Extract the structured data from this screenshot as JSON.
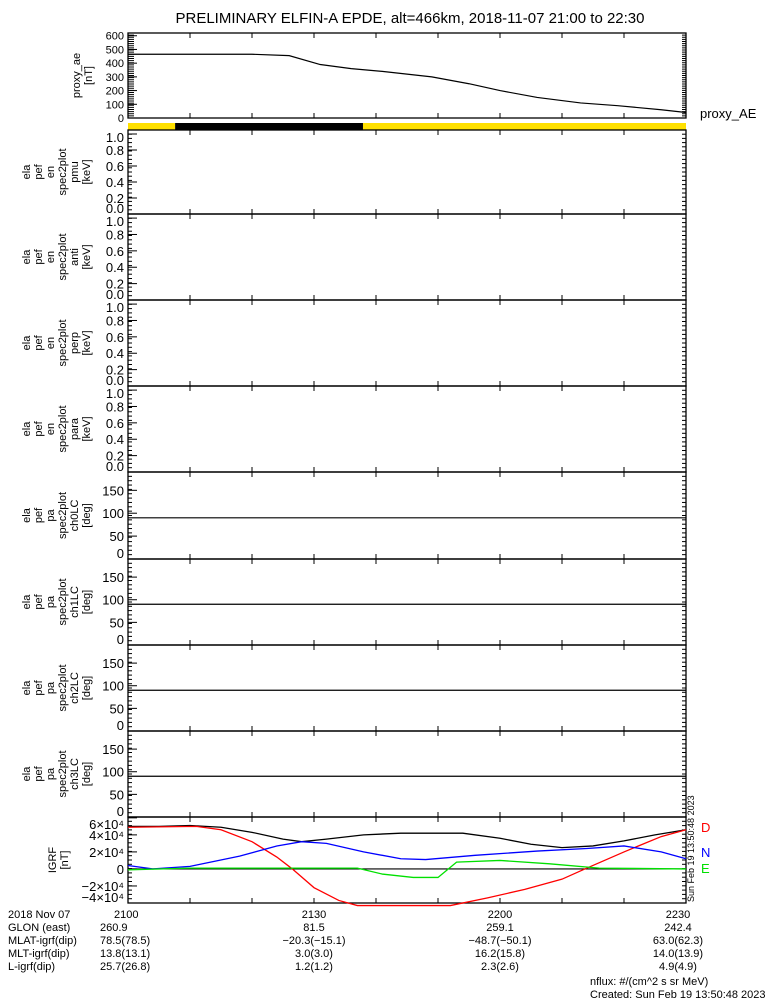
{
  "title": "PRELIMINARY ELFIN-A EPDE, alt=466km, 2018-11-07 21:00 to 22:30",
  "chart_data": [
    {
      "type": "line",
      "name": "proxy_ae",
      "ylabel": [
        "proxy_ae",
        "[nT]"
      ],
      "ylim": [
        0,
        620
      ],
      "yticks": [
        "0",
        "100",
        "200",
        "300",
        "400",
        "500",
        "600"
      ],
      "ytick_values": [
        0,
        100,
        200,
        300,
        400,
        500,
        600
      ],
      "legend": "proxy_AE",
      "x": [
        0,
        20,
        26,
        31,
        36,
        41,
        49,
        55,
        60,
        66,
        73,
        79,
        86,
        90
      ],
      "values": [
        465,
        465,
        455,
        390,
        360,
        340,
        300,
        250,
        200,
        150,
        110,
        90,
        60,
        40
      ]
    },
    {
      "type": "bar",
      "name": "eclipse-bar",
      "segments": [
        {
          "from": 0,
          "to": 7.6,
          "color": "#ffe000"
        },
        {
          "from": 7.6,
          "to": 37.9,
          "color": "#000000"
        },
        {
          "from": 37.9,
          "to": 90,
          "color": "#ffe000"
        }
      ]
    },
    {
      "type": "heatmap",
      "name": "en-pmu",
      "ylabel": [
        "ela",
        "pef",
        "en",
        "spec2plot",
        "pmu",
        "[keV]"
      ],
      "ylim": [
        0,
        1.05
      ],
      "yticks": [
        "0.0",
        "0.2",
        "0.4",
        "0.6",
        "0.8",
        "1.0"
      ],
      "ytick_values": [
        0,
        0.2,
        0.4,
        0.6,
        0.8,
        1.0
      ]
    },
    {
      "type": "heatmap",
      "name": "en-anti",
      "ylabel": [
        "ela",
        "pef",
        "en",
        "spec2plot",
        "anti",
        "[keV]"
      ],
      "ylim": [
        0,
        1.05
      ],
      "yticks": [
        "0.0",
        "0.2",
        "0.4",
        "0.6",
        "0.8",
        "1.0"
      ],
      "ytick_values": [
        0,
        0.2,
        0.4,
        0.6,
        0.8,
        1.0
      ]
    },
    {
      "type": "heatmap",
      "name": "en-perp",
      "ylabel": [
        "ela",
        "pef",
        "en",
        "spec2plot",
        "perp",
        "[keV]"
      ],
      "ylim": [
        0,
        1.05
      ],
      "yticks": [
        "0.0",
        "0.2",
        "0.4",
        "0.6",
        "0.8",
        "1.0"
      ],
      "ytick_values": [
        0,
        0.2,
        0.4,
        0.6,
        0.8,
        1.0
      ]
    },
    {
      "type": "heatmap",
      "name": "en-para",
      "ylabel": [
        "ela",
        "pef",
        "en",
        "spec2plot",
        "para",
        "[keV]"
      ],
      "ylim": [
        0,
        1.05
      ],
      "yticks": [
        "0.0",
        "0.2",
        "0.4",
        "0.6",
        "0.8",
        "1.0"
      ],
      "ytick_values": [
        0,
        0.2,
        0.4,
        0.6,
        0.8,
        1.0
      ]
    },
    {
      "type": "heatmap",
      "name": "pa-ch0LC",
      "ylabel": [
        "ela",
        "pef",
        "pa",
        "spec2plot",
        "ch0LC",
        "[deg]"
      ],
      "ylim": [
        0,
        190
      ],
      "yticks": [
        "0",
        "50",
        "100",
        "150"
      ],
      "ytick_values": [
        0,
        50,
        100,
        150
      ],
      "hline": 90
    },
    {
      "type": "heatmap",
      "name": "pa-ch1LC",
      "ylabel": [
        "ela",
        "pef",
        "pa",
        "spec2plot",
        "ch1LC",
        "[deg]"
      ],
      "ylim": [
        0,
        190
      ],
      "yticks": [
        "0",
        "50",
        "100",
        "150"
      ],
      "ytick_values": [
        0,
        50,
        100,
        150
      ],
      "hline": 90
    },
    {
      "type": "heatmap",
      "name": "pa-ch2LC",
      "ylabel": [
        "ela",
        "pef",
        "pa",
        "spec2plot",
        "ch2LC",
        "[deg]"
      ],
      "ylim": [
        0,
        190
      ],
      "yticks": [
        "0",
        "50",
        "100",
        "150"
      ],
      "ytick_values": [
        0,
        50,
        100,
        150
      ],
      "hline": 90
    },
    {
      "type": "heatmap",
      "name": "pa-ch3LC",
      "ylabel": [
        "ela",
        "pef",
        "pa",
        "spec2plot",
        "ch3LC",
        "[deg]"
      ],
      "ylim": [
        0,
        190
      ],
      "yticks": [
        "0",
        "50",
        "100",
        "150"
      ],
      "ytick_values": [
        0,
        50,
        100,
        150
      ],
      "hline": 90
    },
    {
      "type": "line",
      "name": "igrf",
      "ylabel": [
        "IGRF",
        "[nT]"
      ],
      "ylim": [
        -40000,
        61000
      ],
      "yticks": [
        "−4×10⁴",
        "−2×10⁴",
        "0",
        "2×10⁴",
        "4×10⁴",
        "6×10⁴"
      ],
      "ytick_values": [
        -40000,
        -20000,
        0,
        20000,
        40000,
        60000
      ],
      "hline": 0,
      "series": [
        {
          "name": "total",
          "label": "",
          "color": "#000000",
          "x": [
            0,
            5,
            10,
            15,
            20,
            25,
            28,
            32,
            38,
            44,
            54,
            60,
            65,
            70,
            75,
            80,
            85,
            90
          ],
          "values": [
            50000,
            50000,
            51000,
            49000,
            43000,
            35000,
            32000,
            35000,
            40000,
            42000,
            42000,
            36000,
            29000,
            25000,
            27000,
            33000,
            40000,
            46000
          ]
        },
        {
          "name": "D",
          "label": "D",
          "color": "#ff0000",
          "x": [
            0,
            11,
            15,
            20,
            24,
            26.5,
            30,
            34,
            37,
            52,
            58,
            64,
            70,
            73.7,
            80,
            86,
            90
          ],
          "values": [
            49000,
            50000,
            46000,
            32000,
            14000,
            0,
            -22000,
            -37000,
            -43000,
            -43000,
            -34000,
            -24000,
            -12000,
            0,
            20000,
            38000,
            46000
          ]
        },
        {
          "name": "N",
          "label": "N",
          "color": "#0000ff",
          "x": [
            0,
            4,
            10,
            18,
            24,
            28,
            32,
            38,
            44,
            48,
            56,
            66,
            74,
            80,
            86,
            90
          ],
          "values": [
            4000,
            0,
            3000,
            15000,
            27000,
            32000,
            30000,
            20000,
            12000,
            11000,
            16000,
            21000,
            24000,
            27000,
            20000,
            12000
          ]
        },
        {
          "name": "E",
          "label": "E",
          "color": "#00e000",
          "x": [
            0,
            10,
            37,
            41,
            46,
            50,
            53,
            60,
            68,
            76,
            90
          ],
          "values": [
            -1000,
            1000,
            1000,
            -6000,
            -10000,
            -10000,
            8000,
            10000,
            6000,
            1000,
            0
          ]
        }
      ]
    }
  ],
  "x_axis": {
    "range_minutes": [
      0,
      90
    ],
    "ticks": [
      {
        "minute": 0,
        "label": "2100"
      },
      {
        "minute": 30,
        "label": "2130"
      },
      {
        "minute": 60,
        "label": "2200"
      },
      {
        "minute": 90,
        "label": "2230"
      }
    ]
  },
  "ephemeris": {
    "rows": [
      {
        "label": "2018 Nov 07",
        "values": [
          "2100",
          "2130",
          "2200",
          "2230"
        ]
      },
      {
        "label": "GLON (east)",
        "values": [
          "260.9",
          "81.5",
          "259.1",
          "242.4"
        ]
      },
      {
        "label": "MLAT-igrf(dip)",
        "values": [
          "78.5(78.5)",
          "−20.3(−15.1)",
          "−48.7(−50.1)",
          "63.0(62.3)"
        ]
      },
      {
        "label": "MLT-igrf(dip)",
        "values": [
          "13.8(13.1)",
          "3.0(3.0)",
          "16.2(15.8)",
          "14.0(13.9)"
        ]
      },
      {
        "label": "L-igrf(dip)",
        "values": [
          "25.7(26.8)",
          "1.2(1.2)",
          "2.3(2.6)",
          "4.9(4.9)"
        ]
      }
    ]
  },
  "footer": {
    "units": "nflux: #/(cm^2 s sr MeV)",
    "created": "Created: Sun Feb 19 13:50:48 2023",
    "side_stamp": "Sun Feb 19 13:50:48 2023"
  }
}
